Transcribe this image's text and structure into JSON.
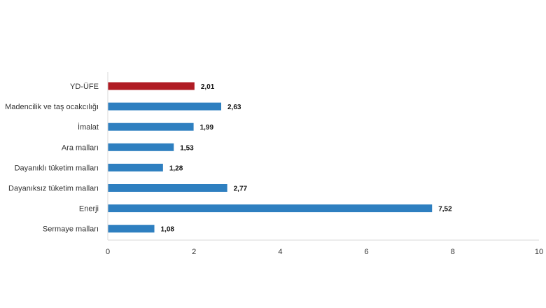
{
  "chart_data": {
    "type": "bar",
    "orientation": "horizontal",
    "categories": [
      "YD-ÜFE",
      "Madencilik ve taş ocakcılığı",
      "İmalat",
      "Ara malları",
      "Dayanıklı tüketim malları",
      "Dayanıksız tüketim malları",
      "Enerji",
      "Sermaye malları"
    ],
    "values": [
      2.01,
      2.63,
      1.99,
      1.53,
      1.28,
      2.77,
      7.52,
      1.08
    ],
    "value_labels": [
      "2,01",
      "2,63",
      "1,99",
      "1,53",
      "1,28",
      "2,77",
      "7,52",
      "1,08"
    ],
    "bar_colors": [
      "#b01c24",
      "#2e7fc0",
      "#2e7fc0",
      "#2e7fc0",
      "#2e7fc0",
      "#2e7fc0",
      "#2e7fc0",
      "#2e7fc0"
    ],
    "xlim": [
      0,
      10
    ],
    "xticks": [
      0,
      2,
      4,
      6,
      8,
      10
    ],
    "xtick_labels": [
      "0",
      "2",
      "4",
      "6",
      "8",
      "10"
    ],
    "grid": false,
    "legend": "none",
    "title": "",
    "xlabel": "",
    "ylabel": ""
  }
}
